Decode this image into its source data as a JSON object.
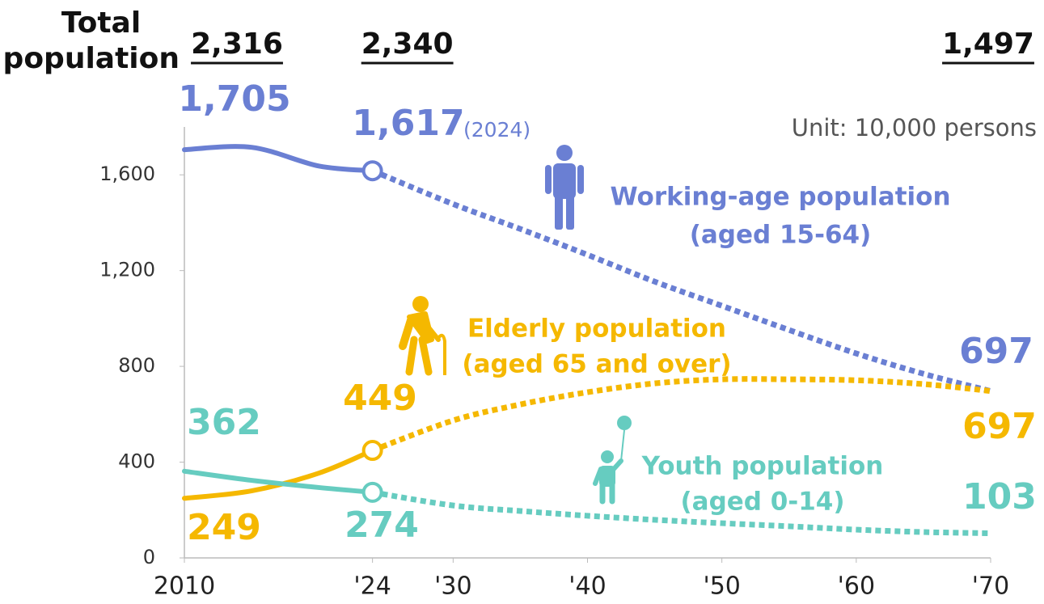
{
  "chart_data": {
    "type": "line",
    "total_label": [
      "Total",
      "population"
    ],
    "totals": {
      "x": [
        2010,
        2024,
        2070
      ],
      "values": [
        2316,
        2340,
        1497
      ],
      "value_labels": [
        "2,316",
        "2,340",
        "1,497"
      ]
    },
    "unit": "Unit: 10,000 persons",
    "note": "(2024)",
    "projection_from": 2024,
    "x": [
      2010,
      2015,
      2020,
      2024,
      2030,
      2035,
      2040,
      2045,
      2050,
      2055,
      2060,
      2065,
      2070
    ],
    "xlim": [
      2010,
      2070
    ],
    "xticks": [
      2010,
      {
        "value": 2024,
        "label": "'24"
      },
      {
        "value": 2030,
        "label": "'30"
      },
      {
        "value": 2040,
        "label": "'40"
      },
      {
        "value": 2050,
        "label": "'50"
      },
      {
        "value": 2060,
        "label": "'60"
      },
      {
        "value": 2070,
        "label": "'70"
      }
    ],
    "ylim": [
      0,
      1800
    ],
    "yticks": [
      0,
      400,
      800,
      {
        "value": 1200,
        "label": "1,200"
      },
      {
        "value": 1600,
        "label": "1,600"
      }
    ],
    "series": [
      {
        "name": "Working-age population",
        "subname": "(aged 15-64)",
        "color": "#6a7fd3",
        "values": [
          1705,
          1715,
          1637,
          1617,
          1478,
          1374,
          1266,
          1154,
          1053,
          952,
          854,
          769,
          697
        ],
        "value_labels": [
          "1,705",
          null,
          null,
          "1,617",
          null,
          null,
          null,
          null,
          null,
          null,
          null,
          null,
          "697"
        ]
      },
      {
        "name": "Elderly population",
        "subname": "(aged 65 and over)",
        "color": "#f5b800",
        "values": [
          249,
          280,
          354,
          449,
          574,
          641,
          692,
          729,
          746,
          746,
          742,
          726,
          697
        ],
        "value_labels": [
          "249",
          null,
          null,
          "449",
          null,
          null,
          null,
          null,
          null,
          null,
          null,
          null,
          "697"
        ]
      },
      {
        "name": "Youth population",
        "subname": "(aged 0-14)",
        "color": "#66ccc0",
        "values": [
          362,
          324,
          294,
          274,
          219,
          196,
          176,
          159,
          145,
          132,
          118,
          108,
          103
        ],
        "value_labels": [
          "362",
          null,
          null,
          "274",
          null,
          null,
          null,
          null,
          null,
          null,
          null,
          null,
          "103"
        ]
      }
    ]
  }
}
